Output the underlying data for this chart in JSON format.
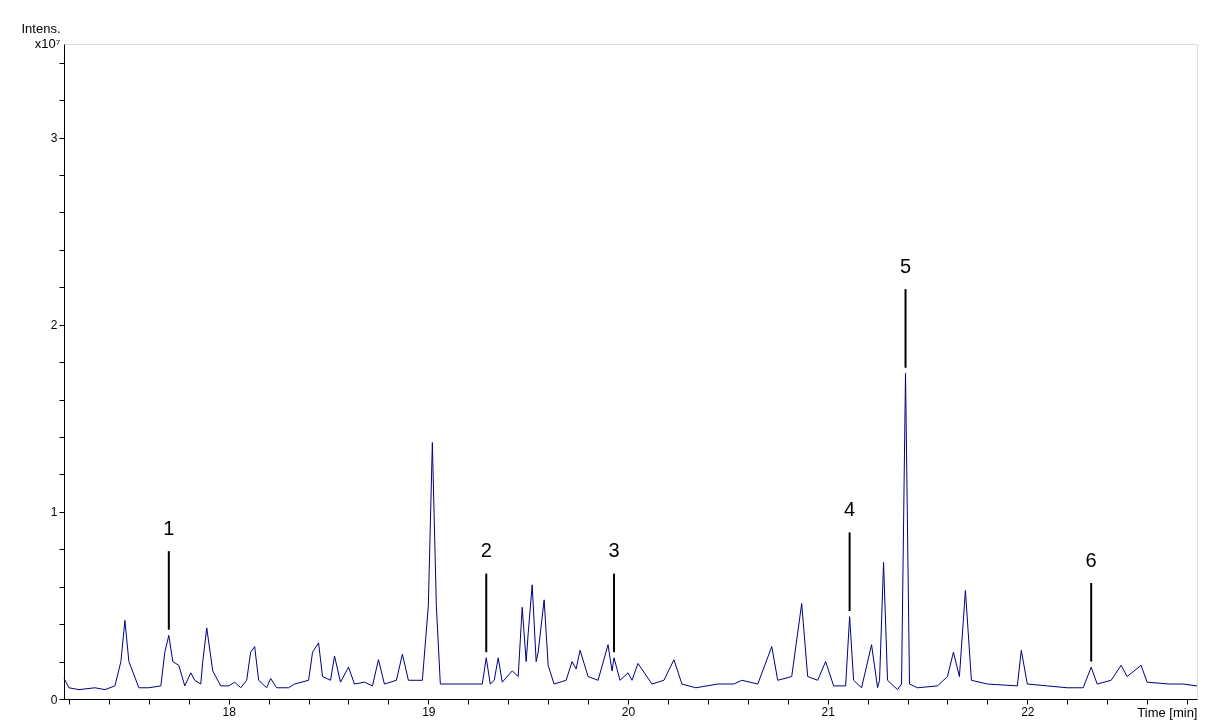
{
  "chart_data": {
    "type": "line",
    "xlabel": "Time [min]",
    "ylabel": "Intens. x10⁷",
    "series": [
      {
        "color": "#000080",
        "x": [
          17.175,
          17.2,
          17.25,
          17.33,
          17.38,
          17.43,
          17.46,
          17.48,
          17.5,
          17.55,
          17.6,
          17.66,
          17.68,
          17.7,
          17.72,
          17.75,
          17.78,
          17.81,
          17.83,
          17.86,
          17.87,
          17.89,
          17.92,
          17.96,
          18.0,
          18.03,
          18.06,
          18.09,
          18.11,
          18.13,
          18.15,
          18.19,
          18.21,
          18.24,
          18.3,
          18.33,
          18.4,
          18.42,
          18.45,
          18.47,
          18.51,
          18.53,
          18.56,
          18.6,
          18.63,
          18.68,
          18.72,
          18.75,
          18.78,
          18.84,
          18.87,
          18.9,
          18.97,
          19.0,
          19.02,
          19.04,
          19.06,
          19.14,
          19.24,
          19.27,
          19.29,
          19.31,
          19.33,
          19.35,
          19.37,
          19.42,
          19.45,
          19.47,
          19.49,
          19.5,
          19.52,
          19.54,
          19.55,
          19.58,
          19.6,
          19.63,
          19.69,
          19.72,
          19.74,
          19.76,
          19.8,
          19.85,
          19.9,
          19.92,
          19.93,
          19.96,
          20.0,
          20.02,
          20.05,
          20.12,
          20.18,
          20.23,
          20.27,
          20.34,
          20.45,
          20.53,
          20.57,
          20.65,
          20.72,
          20.75,
          20.82,
          20.87,
          20.9,
          20.95,
          20.99,
          21.03,
          21.09,
          21.11,
          21.13,
          21.17,
          21.22,
          21.25,
          21.26,
          21.28,
          21.3,
          21.35,
          21.37,
          21.39,
          21.41,
          21.45,
          21.55,
          21.6,
          21.63,
          21.66,
          21.69,
          21.72,
          21.8,
          21.95,
          21.97,
          22.0,
          22.1,
          22.2,
          22.28,
          22.32,
          22.35,
          22.42,
          22.47,
          22.5,
          22.57,
          22.6,
          22.71,
          22.78,
          22.85
        ],
        "values": [
          0.11,
          0.06,
          0.05,
          0.06,
          0.05,
          0.07,
          0.2,
          0.42,
          0.2,
          0.06,
          0.06,
          0.07,
          0.25,
          0.34,
          0.2,
          0.18,
          0.07,
          0.14,
          0.1,
          0.08,
          0.2,
          0.38,
          0.15,
          0.07,
          0.07,
          0.09,
          0.06,
          0.1,
          0.25,
          0.28,
          0.1,
          0.06,
          0.11,
          0.06,
          0.06,
          0.08,
          0.1,
          0.25,
          0.3,
          0.12,
          0.1,
          0.23,
          0.09,
          0.17,
          0.08,
          0.09,
          0.07,
          0.21,
          0.08,
          0.1,
          0.24,
          0.1,
          0.1,
          0.5,
          1.37,
          0.5,
          0.08,
          0.08,
          0.08,
          0.08,
          0.22,
          0.08,
          0.1,
          0.22,
          0.09,
          0.15,
          0.12,
          0.49,
          0.2,
          0.35,
          0.61,
          0.2,
          0.25,
          0.53,
          0.18,
          0.08,
          0.1,
          0.2,
          0.16,
          0.26,
          0.12,
          0.1,
          0.29,
          0.15,
          0.22,
          0.1,
          0.14,
          0.1,
          0.19,
          0.08,
          0.1,
          0.21,
          0.08,
          0.06,
          0.08,
          0.08,
          0.1,
          0.08,
          0.28,
          0.1,
          0.12,
          0.51,
          0.12,
          0.1,
          0.2,
          0.07,
          0.07,
          0.44,
          0.1,
          0.06,
          0.29,
          0.06,
          0.1,
          0.73,
          0.1,
          0.05,
          0.08,
          1.74,
          0.08,
          0.06,
          0.07,
          0.12,
          0.25,
          0.12,
          0.58,
          0.1,
          0.08,
          0.07,
          0.26,
          0.08,
          0.07,
          0.06,
          0.06,
          0.17,
          0.08,
          0.1,
          0.18,
          0.12,
          0.18,
          0.09,
          0.08,
          0.08,
          0.07
        ]
      }
    ],
    "xlim": [
      17.175,
      22.85
    ],
    "ylim": [
      0,
      3.5
    ],
    "xticks": [
      {
        "value": 17.2,
        "label": null
      },
      {
        "value": 17.4,
        "label": null
      },
      {
        "value": 17.6,
        "label": null
      },
      {
        "value": 17.8,
        "label": null
      },
      18,
      {
        "value": 18.2,
        "label": null
      },
      {
        "value": 18.4,
        "label": null
      },
      {
        "value": 18.6,
        "label": null
      },
      {
        "value": 18.8,
        "label": null
      },
      19,
      {
        "value": 19.2,
        "label": null
      },
      {
        "value": 19.4,
        "label": null
      },
      {
        "value": 19.6,
        "label": null
      },
      {
        "value": 19.8,
        "label": null
      },
      20,
      {
        "value": 20.2,
        "label": null
      },
      {
        "value": 20.4,
        "label": null
      },
      {
        "value": 20.6,
        "label": null
      },
      {
        "value": 20.8,
        "label": null
      },
      21,
      {
        "value": 21.2,
        "label": null
      },
      {
        "value": 21.4,
        "label": null
      },
      {
        "value": 21.6,
        "label": null
      },
      {
        "value": 21.8,
        "label": null
      },
      22,
      {
        "value": 22.2,
        "label": null
      },
      {
        "value": 22.4,
        "label": null
      },
      {
        "value": 22.6,
        "label": null
      },
      {
        "value": 22.8,
        "label": null
      }
    ],
    "yticks": [
      0,
      {
        "value": 0.2,
        "label": null
      },
      {
        "value": 0.4,
        "label": null
      },
      {
        "value": 0.6,
        "label": null
      },
      {
        "value": 0.8,
        "label": null
      },
      1,
      {
        "value": 1.2,
        "label": null
      },
      {
        "value": 1.4,
        "label": null
      },
      {
        "value": 1.6,
        "label": null
      },
      {
        "value": 1.8,
        "label": null
      },
      2,
      {
        "value": 2.2,
        "label": null
      },
      {
        "value": 2.4,
        "label": null
      },
      {
        "value": 2.6,
        "label": null
      },
      {
        "value": 2.8,
        "label": null
      },
      3,
      {
        "value": 3.2,
        "label": null
      },
      {
        "value": 3.4,
        "label": null
      }
    ],
    "annotations": [
      {
        "text": "1",
        "x": 17.7,
        "y": 0.34
      },
      {
        "text": "2",
        "x": 19.29,
        "y": 0.22
      },
      {
        "text": "3",
        "x": 19.93,
        "y": 0.22
      },
      {
        "text": "4",
        "x": 21.11,
        "y": 0.44
      },
      {
        "text": "5",
        "x": 21.39,
        "y": 1.74
      },
      {
        "text": "6",
        "x": 22.32,
        "y": 0.17
      }
    ],
    "grid": false,
    "marker": "none",
    "line_style": "solid"
  }
}
